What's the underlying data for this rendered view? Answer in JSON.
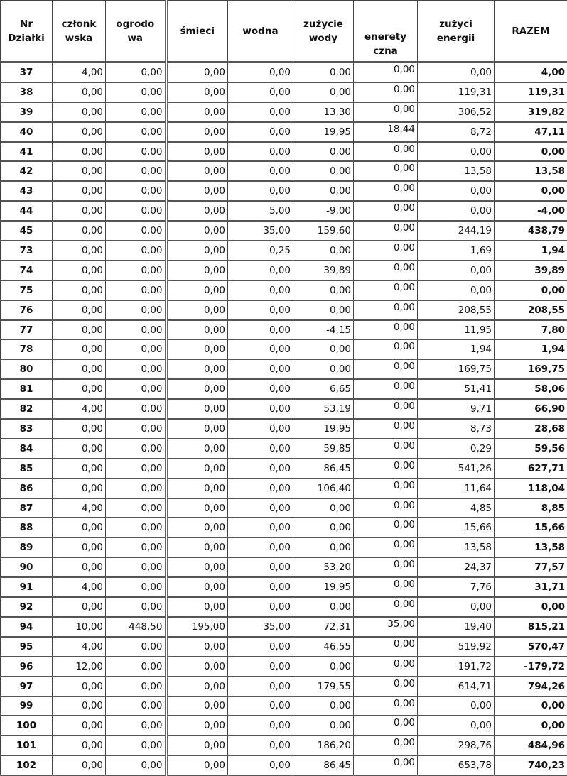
{
  "headers": [
    [
      "Nr",
      "Działki"
    ],
    [
      "członk",
      "wska"
    ],
    [
      "ogrodo",
      "wa"
    ],
    [
      "śmieci"
    ],
    [
      "wodna"
    ],
    [
      "zużycie",
      "wody"
    ],
    [
      "enerety",
      "czna"
    ],
    [
      "zużyci",
      "energii"
    ],
    [
      "RAZEM"
    ]
  ],
  "rows": [
    [
      "37",
      "4,00",
      "0,00",
      "0,00",
      "0,00",
      "0,00",
      "0,00",
      "0,00",
      "4,00"
    ],
    [
      "38",
      "0,00",
      "0,00",
      "0,00",
      "0,00",
      "0,00",
      "0,00",
      "119,31",
      "119,31"
    ],
    [
      "39",
      "0,00",
      "0,00",
      "0,00",
      "0,00",
      "13,30",
      "0,00",
      "306,52",
      "319,82"
    ],
    [
      "40",
      "0,00",
      "0,00",
      "0,00",
      "0,00",
      "19,95",
      "18,44",
      "8,72",
      "47,11"
    ],
    [
      "41",
      "0,00",
      "0,00",
      "0,00",
      "0,00",
      "0,00",
      "0,00",
      "0,00",
      "0,00"
    ],
    [
      "42",
      "0,00",
      "0,00",
      "0,00",
      "0,00",
      "0,00",
      "0,00",
      "13,58",
      "13,58"
    ],
    [
      "43",
      "0,00",
      "0,00",
      "0,00",
      "0,00",
      "0,00",
      "0,00",
      "0,00",
      "0,00"
    ],
    [
      "44",
      "0,00",
      "0,00",
      "0,00",
      "5,00",
      "-9,00",
      "0,00",
      "0,00",
      "-4,00"
    ],
    [
      "45",
      "0,00",
      "0,00",
      "0,00",
      "35,00",
      "159,60",
      "0,00",
      "244,19",
      "438,79"
    ],
    [
      "73",
      "0,00",
      "0,00",
      "0,00",
      "0,25",
      "0,00",
      "0,00",
      "1,69",
      "1,94"
    ],
    [
      "74",
      "0,00",
      "0,00",
      "0,00",
      "0,00",
      "39,89",
      "0,00",
      "0,00",
      "39,89"
    ],
    [
      "75",
      "0,00",
      "0,00",
      "0,00",
      "0,00",
      "0,00",
      "0,00",
      "0,00",
      "0,00"
    ],
    [
      "76",
      "0,00",
      "0,00",
      "0,00",
      "0,00",
      "0,00",
      "0,00",
      "208,55",
      "208,55"
    ],
    [
      "77",
      "0,00",
      "0,00",
      "0,00",
      "0,00",
      "-4,15",
      "0,00",
      "11,95",
      "7,80"
    ],
    [
      "78",
      "0,00",
      "0,00",
      "0,00",
      "0,00",
      "0,00",
      "0,00",
      "1,94",
      "1,94"
    ],
    [
      "80",
      "0,00",
      "0,00",
      "0,00",
      "0,00",
      "0,00",
      "0,00",
      "169,75",
      "169,75"
    ],
    [
      "81",
      "0,00",
      "0,00",
      "0,00",
      "0,00",
      "6,65",
      "0,00",
      "51,41",
      "58,06"
    ],
    [
      "82",
      "4,00",
      "0,00",
      "0,00",
      "0,00",
      "53,19",
      "0,00",
      "9,71",
      "66,90"
    ],
    [
      "83",
      "0,00",
      "0,00",
      "0,00",
      "0,00",
      "19,95",
      "0,00",
      "8,73",
      "28,68"
    ],
    [
      "84",
      "0,00",
      "0,00",
      "0,00",
      "0,00",
      "59,85",
      "0,00",
      "-0,29",
      "59,56"
    ],
    [
      "85",
      "0,00",
      "0,00",
      "0,00",
      "0,00",
      "86,45",
      "0,00",
      "541,26",
      "627,71"
    ],
    [
      "86",
      "0,00",
      "0,00",
      "0,00",
      "0,00",
      "106,40",
      "0,00",
      "11,64",
      "118,04"
    ],
    [
      "87",
      "4,00",
      "0,00",
      "0,00",
      "0,00",
      "0,00",
      "0,00",
      "4,85",
      "8,85"
    ],
    [
      "88",
      "0,00",
      "0,00",
      "0,00",
      "0,00",
      "0,00",
      "0,00",
      "15,66",
      "15,66"
    ],
    [
      "89",
      "0,00",
      "0,00",
      "0,00",
      "0,00",
      "0,00",
      "0,00",
      "13,58",
      "13,58"
    ],
    [
      "90",
      "0,00",
      "0,00",
      "0,00",
      "0,00",
      "53,20",
      "0,00",
      "24,37",
      "77,57"
    ],
    [
      "91",
      "4,00",
      "0,00",
      "0,00",
      "0,00",
      "19,95",
      "0,00",
      "7,76",
      "31,71"
    ],
    [
      "92",
      "0,00",
      "0,00",
      "0,00",
      "0,00",
      "0,00",
      "0,00",
      "0,00",
      "0,00"
    ],
    [
      "94",
      "10,00",
      "448,50",
      "195,00",
      "35,00",
      "72,31",
      "35,00",
      "19,40",
      "815,21"
    ],
    [
      "95",
      "4,00",
      "0,00",
      "0,00",
      "0,00",
      "46,55",
      "0,00",
      "519,92",
      "570,47"
    ],
    [
      "96",
      "12,00",
      "0,00",
      "0,00",
      "0,00",
      "0,00",
      "0,00",
      "-191,72",
      "-179,72"
    ],
    [
      "97",
      "0,00",
      "0,00",
      "0,00",
      "0,00",
      "179,55",
      "0,00",
      "614,71",
      "794,26"
    ],
    [
      "99",
      "0,00",
      "0,00",
      "0,00",
      "0,00",
      "0,00",
      "0,00",
      "0,00",
      "0,00"
    ],
    [
      "100",
      "0,00",
      "0,00",
      "0,00",
      "0,00",
      "0,00",
      "0,00",
      "0,00",
      "0,00"
    ],
    [
      "101",
      "0,00",
      "0,00",
      "0,00",
      "0,00",
      "186,20",
      "0,00",
      "298,76",
      "484,96"
    ],
    [
      "102",
      "0,00",
      "0,00",
      "0,00",
      "0,00",
      "86,45",
      "0,00",
      "653,78",
      "740,23"
    ]
  ]
}
